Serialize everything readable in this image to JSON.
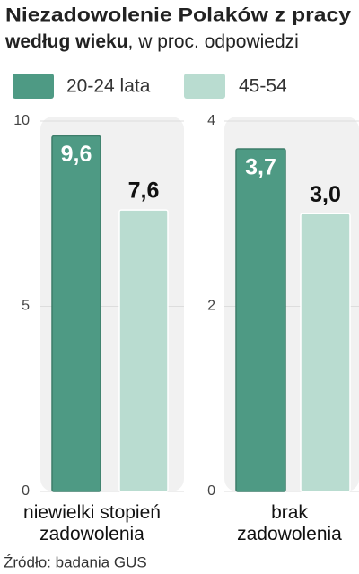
{
  "title_bold": "Niezadowolenie Polaków z pracy według wieku",
  "title_rest": ", w proc. odpowiedzi",
  "legend": [
    "20-24 lata",
    "45-54"
  ],
  "source": "Źródło: badania GUS",
  "chart_data": [
    {
      "type": "bar",
      "categories": [
        "niewielki stopień zadowolenia"
      ],
      "series": [
        {
          "color": "#4e9a84",
          "values": [
            9.6
          ],
          "value_labels": [
            "9,6"
          ]
        },
        {
          "color": "#b9dcd0",
          "values": [
            7.6
          ],
          "value_labels": [
            "7,6"
          ]
        }
      ],
      "ylim": [
        0,
        10
      ],
      "yticks": [
        0,
        5,
        10
      ],
      "grid": true
    },
    {
      "type": "bar",
      "categories": [
        "brak zadowolenia"
      ],
      "series": [
        {
          "color": "#4e9a84",
          "values": [
            3.7
          ],
          "value_labels": [
            "3,7"
          ]
        },
        {
          "color": "#b9dcd0",
          "values": [
            3.0
          ],
          "value_labels": [
            "3,0"
          ]
        }
      ],
      "ylim": [
        0,
        4
      ],
      "yticks": [
        0,
        2,
        4
      ],
      "grid": true
    }
  ]
}
